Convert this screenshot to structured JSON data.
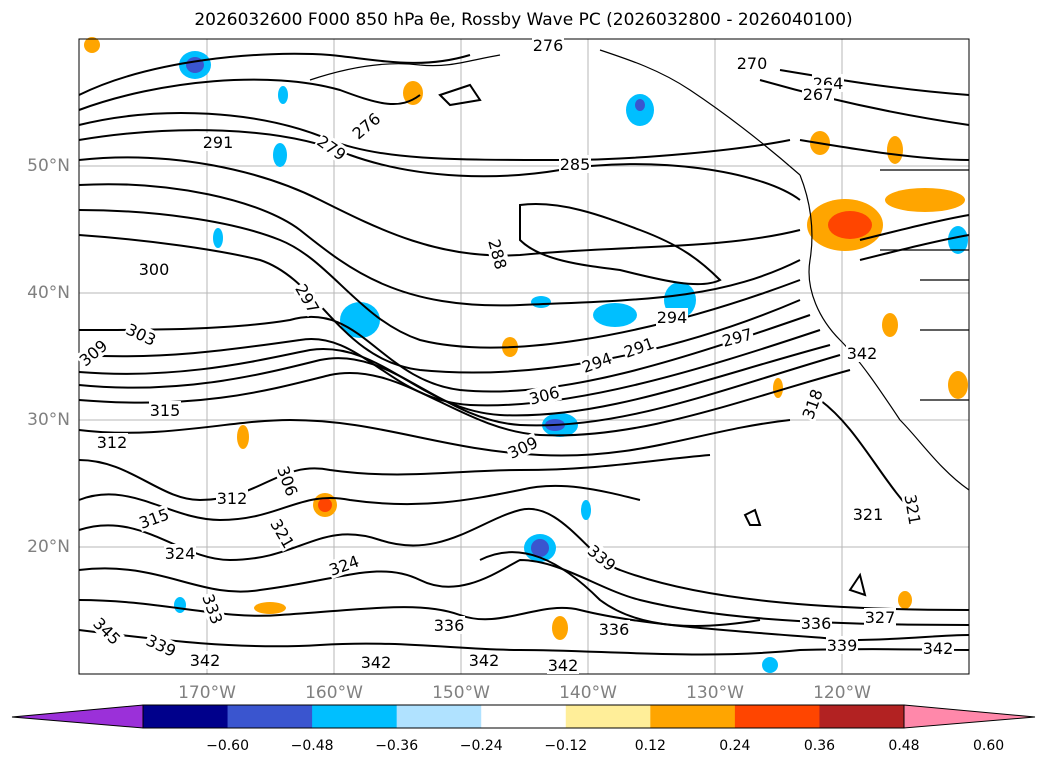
{
  "title": "2026032600 F000 850 hPa θe, Rossby Wave PC (2026032800 - 2026040100)",
  "map": {
    "lon_labels": [
      "170°W",
      "160°W",
      "150°W",
      "140°W",
      "130°W",
      "120°W"
    ],
    "lat_labels": [
      "50°N",
      "40°N",
      "30°N",
      "20°N"
    ],
    "contour_labels": [
      "276",
      "270",
      "264",
      "267",
      "291",
      "276",
      "279",
      "285",
      "288",
      "300",
      "297",
      "294",
      "291",
      "294",
      "297",
      "306",
      "309",
      "303",
      "315",
      "312",
      "309",
      "318",
      "312",
      "306",
      "315",
      "321",
      "324",
      "321",
      "321",
      "324",
      "336",
      "336",
      "336",
      "339",
      "342",
      "342",
      "342",
      "342",
      "333",
      "345",
      "327",
      "339",
      "342",
      "342",
      "339"
    ],
    "field": "850 hPa equivalent potential temperature (θe)",
    "shading": "Rossby Wave PC"
  },
  "colorbar": {
    "ticks": [
      "−0.60",
      "−0.48",
      "−0.36",
      "−0.24",
      "−0.12",
      "0.12",
      "0.24",
      "0.36",
      "0.48",
      "0.60"
    ],
    "colors": [
      "#9b30d9",
      "#00008b",
      "#3a55cf",
      "#00bfff",
      "#b0e2ff",
      "#ffffff",
      "#ffee99",
      "#ffa500",
      "#ff4500",
      "#b22222",
      "#ff88aa"
    ]
  }
}
